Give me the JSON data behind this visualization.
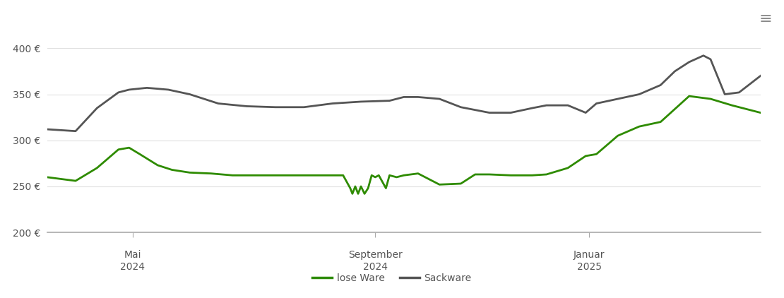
{
  "background_color": "#ffffff",
  "grid_color": "#e0e0e0",
  "ylim": [
    200,
    420
  ],
  "yticks": [
    200,
    250,
    300,
    350,
    400
  ],
  "ytick_labels": [
    "200 €",
    "250 €",
    "300 €",
    "350 €",
    "400 €"
  ],
  "xtick_labels": [
    [
      "Mai",
      "2024"
    ],
    [
      "September",
      "2024"
    ],
    [
      "Januar",
      "2025"
    ]
  ],
  "xtick_positions": [
    0.12,
    0.46,
    0.76
  ],
  "lose_ware_color": "#2e8b00",
  "sackware_color": "#555555",
  "line_width": 2.0,
  "legend_labels": [
    "lose Ware",
    "Sackware"
  ],
  "lose_ware_x": [
    0.0,
    0.04,
    0.07,
    0.1,
    0.115,
    0.13,
    0.155,
    0.175,
    0.2,
    0.23,
    0.26,
    0.3,
    0.33,
    0.36,
    0.38,
    0.4,
    0.415,
    0.42,
    0.425,
    0.428,
    0.432,
    0.436,
    0.44,
    0.445,
    0.45,
    0.455,
    0.46,
    0.465,
    0.47,
    0.475,
    0.48,
    0.49,
    0.5,
    0.52,
    0.55,
    0.58,
    0.6,
    0.62,
    0.65,
    0.68,
    0.7,
    0.73,
    0.755,
    0.77,
    0.8,
    0.83,
    0.86,
    0.9,
    0.93,
    0.96,
    1.0
  ],
  "lose_ware_y": [
    260,
    256,
    270,
    290,
    292,
    285,
    273,
    268,
    265,
    264,
    262,
    262,
    262,
    262,
    262,
    262,
    262,
    255,
    248,
    242,
    250,
    242,
    250,
    242,
    248,
    262,
    260,
    262,
    255,
    248,
    262,
    260,
    262,
    264,
    252,
    253,
    263,
    263,
    262,
    262,
    263,
    270,
    283,
    285,
    305,
    315,
    320,
    348,
    345,
    338,
    330
  ],
  "sackware_x": [
    0.0,
    0.04,
    0.07,
    0.1,
    0.115,
    0.14,
    0.17,
    0.2,
    0.24,
    0.28,
    0.32,
    0.36,
    0.4,
    0.44,
    0.48,
    0.5,
    0.52,
    0.55,
    0.58,
    0.62,
    0.65,
    0.68,
    0.7,
    0.73,
    0.755,
    0.77,
    0.8,
    0.83,
    0.86,
    0.88,
    0.9,
    0.92,
    0.93,
    0.95,
    0.97,
    1.0
  ],
  "sackware_y": [
    312,
    310,
    335,
    352,
    355,
    357,
    355,
    350,
    340,
    337,
    336,
    336,
    340,
    342,
    343,
    347,
    347,
    345,
    336,
    330,
    330,
    335,
    338,
    338,
    330,
    340,
    345,
    350,
    360,
    375,
    385,
    392,
    388,
    350,
    352,
    370
  ]
}
